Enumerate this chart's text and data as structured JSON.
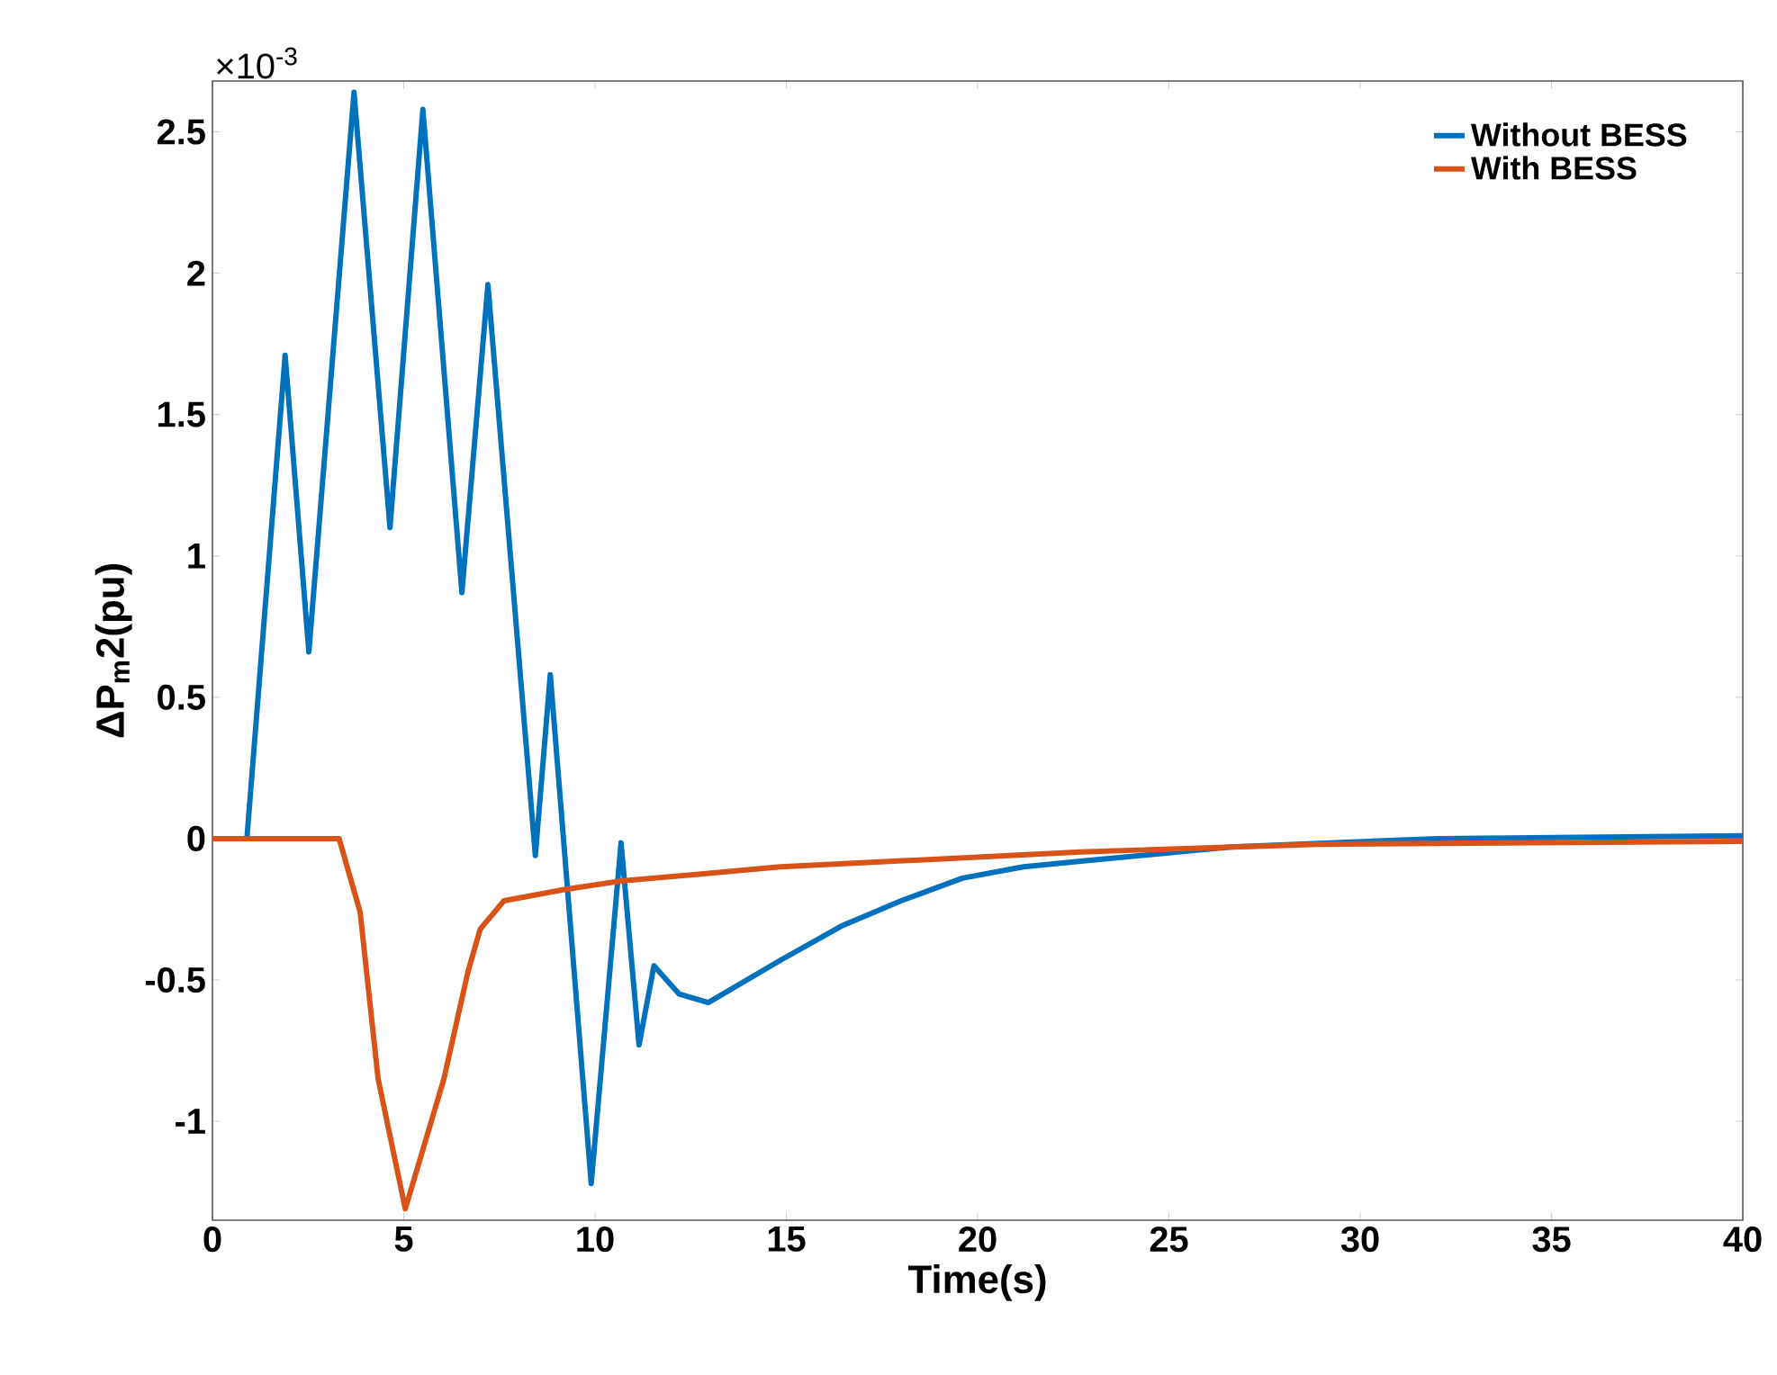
{
  "chart_data": {
    "type": "line",
    "xlabel": "Time(s)",
    "ylabel": "ΔP$_{m}$2(pu)",
    "annotations": [
      "×10$^{-3}$"
    ],
    "xlim": [
      0,
      40
    ],
    "ylim": [
      -1.35,
      2.68
    ],
    "xticks": [
      0,
      5,
      10,
      15,
      20,
      25,
      30,
      35,
      40
    ],
    "yticks": [
      -1,
      -0.5,
      0,
      0.5,
      1,
      1.5,
      2,
      2.5
    ],
    "legend": "top right",
    "grid": false,
    "marker": "none",
    "line_style": "solid",
    "series": [
      {
        "name": "Without BESS",
        "color": "#0072bd",
        "x": [
          0,
          0.9,
          1.9,
          2.52,
          3.7,
          4.64,
          5.5,
          6.52,
          7.2,
          8.44,
          8.83,
          9.9,
          10.68,
          11.15,
          11.54,
          12.2,
          12.96,
          14.85,
          16.43,
          18.0,
          19.6,
          21.2,
          22.7,
          26.6,
          32,
          40
        ],
        "values": [
          0,
          0,
          1.71,
          0.66,
          2.64,
          1.1,
          2.58,
          0.87,
          1.96,
          -0.06,
          0.58,
          -1.22,
          -0.015,
          -0.73,
          -0.45,
          -0.55,
          -0.58,
          -0.43,
          -0.31,
          -0.22,
          -0.14,
          -0.1,
          -0.08,
          -0.03,
          0,
          0.01
        ]
      },
      {
        "name": "With BESS",
        "color": "#d95319",
        "x": [
          0,
          3.31,
          3.86,
          4.33,
          5.04,
          6.05,
          6.68,
          7.0,
          7.62,
          9.2,
          10.68,
          14.85,
          22.7,
          28.9,
          40
        ],
        "values": [
          0,
          0,
          -0.26,
          -0.85,
          -1.31,
          -0.85,
          -0.47,
          -0.32,
          -0.22,
          -0.18,
          -0.15,
          -0.1,
          -0.047,
          -0.02,
          -0.01
        ]
      }
    ]
  }
}
